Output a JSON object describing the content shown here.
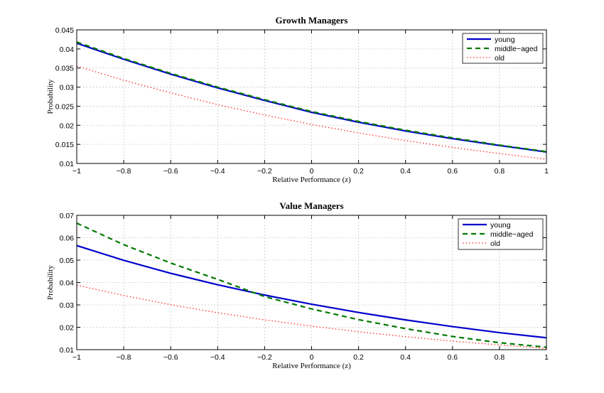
{
  "chart_data": [
    {
      "type": "line",
      "title": "Growth Managers",
      "xlabel": "Relative Performance (z)",
      "ylabel": "Probability",
      "xlim": [
        -1,
        1
      ],
      "ylim": [
        0.01,
        0.045
      ],
      "xticks": [
        "−1",
        "−0.8",
        "−0.6",
        "−0.4",
        "−0.2",
        "0",
        "0.2",
        "0.4",
        "0.6",
        "0.8",
        "1"
      ],
      "yticks": [
        "0.01",
        "0.015",
        "0.02",
        "0.025",
        "0.03",
        "0.035",
        "0.04",
        "0.045"
      ],
      "grid": true,
      "legend_position": "top-right",
      "x": [
        -1,
        -0.8,
        -0.6,
        -0.4,
        -0.2,
        0,
        0.2,
        0.4,
        0.6,
        0.8,
        1
      ],
      "series": [
        {
          "name": "young",
          "color": "#0000cc",
          "style": "solid",
          "values": [
            0.0415,
            0.0373,
            0.0334,
            0.0298,
            0.0265,
            0.0234,
            0.0208,
            0.0185,
            0.0165,
            0.0147,
            0.013
          ]
        },
        {
          "name": "middle−aged",
          "color": "#007a00",
          "style": "dashed",
          "values": [
            0.0418,
            0.0375,
            0.0336,
            0.03,
            0.0267,
            0.0236,
            0.021,
            0.0187,
            0.0167,
            0.0148,
            0.0131
          ]
        },
        {
          "name": "old",
          "color": "#ff2a2a",
          "style": "dotted",
          "values": [
            0.0355,
            0.0318,
            0.0285,
            0.0254,
            0.0227,
            0.0202,
            0.018,
            0.016,
            0.0142,
            0.0126,
            0.0111
          ]
        }
      ]
    },
    {
      "type": "line",
      "title": "Value Managers",
      "xlabel": "Relative Performance (z)",
      "ylabel": "Probability",
      "xlim": [
        -1,
        1
      ],
      "ylim": [
        0.01,
        0.07
      ],
      "xticks": [
        "−1",
        "−0.8",
        "−0.6",
        "−0.4",
        "−0.2",
        "0",
        "0.2",
        "0.4",
        "0.6",
        "0.8",
        "1"
      ],
      "yticks": [
        "0.01",
        "0.02",
        "0.03",
        "0.04",
        "0.05",
        "0.06",
        "0.07"
      ],
      "grid": true,
      "legend_position": "top-right",
      "x": [
        -1,
        -0.8,
        -0.6,
        -0.4,
        -0.2,
        0,
        0.2,
        0.4,
        0.6,
        0.8,
        1
      ],
      "series": [
        {
          "name": "young",
          "color": "#0000cc",
          "style": "solid",
          "values": [
            0.0565,
            0.0499,
            0.0441,
            0.039,
            0.0344,
            0.0303,
            0.0266,
            0.0233,
            0.0203,
            0.0176,
            0.0153
          ]
        },
        {
          "name": "middle−aged",
          "color": "#007a00",
          "style": "dashed",
          "values": [
            0.0665,
            0.0569,
            0.0487,
            0.0414,
            0.0337,
            0.0282,
            0.0234,
            0.0194,
            0.0159,
            0.0131,
            0.0111
          ]
        },
        {
          "name": "old",
          "color": "#ff2a2a",
          "style": "dotted",
          "values": [
            0.0388,
            0.0342,
            0.0301,
            0.0265,
            0.0233,
            0.0205,
            0.018,
            0.0158,
            0.0138,
            0.0121,
            0.0106
          ]
        }
      ]
    }
  ]
}
